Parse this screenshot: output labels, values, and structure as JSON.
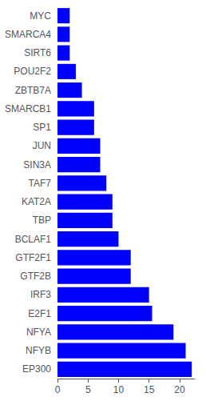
{
  "chart_data": {
    "type": "bar",
    "orientation": "horizontal",
    "categories": [
      "MYC",
      "SMARCA4",
      "SIRT6",
      "POU2F2",
      "ZBTB7A",
      "SMARCB1",
      "SP1",
      "JUN",
      "SIN3A",
      "TAF7",
      "KAT2A",
      "TBP",
      "BCLAF1",
      "GTF2F1",
      "GTF2B",
      "IRF3",
      "E2F1",
      "NFYA",
      "NFYB",
      "EP300"
    ],
    "values": [
      2.0,
      2.0,
      2.0,
      3.0,
      4.0,
      6.0,
      6.0,
      7.0,
      7.0,
      8.0,
      9.0,
      9.0,
      10.0,
      12.0,
      12.0,
      15.0,
      15.5,
      19.0,
      21.0,
      22.0
    ],
    "color": "#0000FF",
    "xlim": [
      0,
      22.5
    ],
    "xticks": [
      0,
      5,
      10,
      15,
      20
    ],
    "grid": false
  }
}
